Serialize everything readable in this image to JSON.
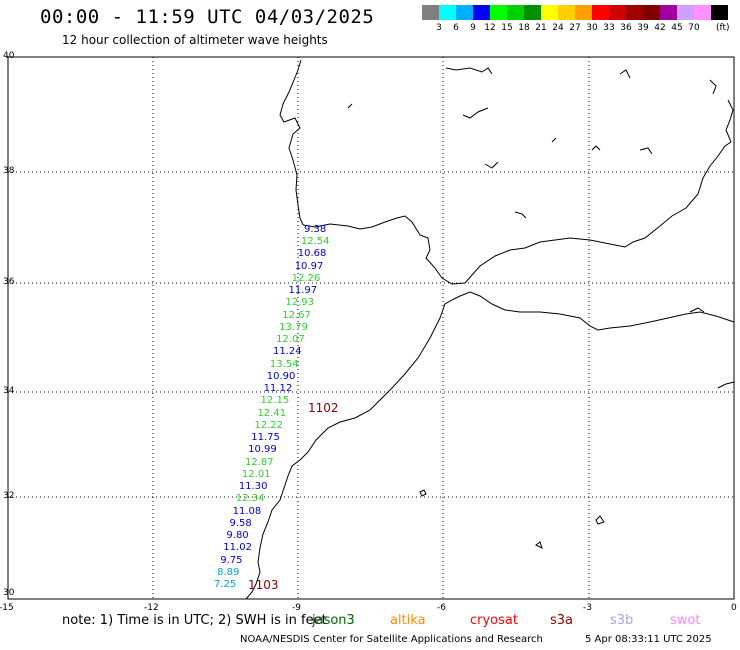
{
  "header": {
    "title": "00:00 - 11:59 UTC 04/03/2025",
    "subtitle": "12 hour collection of altimeter wave heights"
  },
  "scale": {
    "colors": [
      "#808080",
      "#00ffff",
      "#00b0ff",
      "#0000ff",
      "#00ff00",
      "#00d000",
      "#009000",
      "#ffff00",
      "#ffd000",
      "#ffa000",
      "#ff0000",
      "#d00000",
      "#a00000",
      "#800000",
      "#a000a0",
      "#d0a0ff",
      "#ff90ff",
      "#000000"
    ],
    "labels": [
      "3",
      "6",
      "9",
      "12",
      "15",
      "18",
      "21",
      "24",
      "27",
      "30",
      "33",
      "36",
      "39",
      "42",
      "45",
      "70"
    ],
    "unit": "(ft)"
  },
  "axes": {
    "lat_labels": [
      "40",
      "38",
      "36",
      "34",
      "32",
      "30"
    ],
    "lon_labels": [
      "-15",
      "-12",
      "-9",
      "-6",
      "-3",
      "0"
    ]
  },
  "observations": [
    {
      "v": "9.38",
      "c": "#0000cd"
    },
    {
      "v": "12.54",
      "c": "#32cd32"
    },
    {
      "v": "10.68",
      "c": "#0000cd"
    },
    {
      "v": "10.97",
      "c": "#0000cd"
    },
    {
      "v": "12.26",
      "c": "#32cd32"
    },
    {
      "v": "11.97",
      "c": "#0000cd"
    },
    {
      "v": "12.93",
      "c": "#32cd32"
    },
    {
      "v": "12.67",
      "c": "#32cd32"
    },
    {
      "v": "13.79",
      "c": "#32cd32"
    },
    {
      "v": "12.07",
      "c": "#32cd32"
    },
    {
      "v": "11.24",
      "c": "#0000cd"
    },
    {
      "v": "13.54",
      "c": "#32cd32"
    },
    {
      "v": "10.90",
      "c": "#0000cd"
    },
    {
      "v": "11.12",
      "c": "#0000cd"
    },
    {
      "v": "12.15",
      "c": "#32cd32"
    },
    {
      "v": "12.41",
      "c": "#32cd32"
    },
    {
      "v": "12.22",
      "c": "#32cd32"
    },
    {
      "v": "11.75",
      "c": "#0000cd"
    },
    {
      "v": "10.99",
      "c": "#0000cd"
    },
    {
      "v": "12.87",
      "c": "#32cd32"
    },
    {
      "v": "12.01",
      "c": "#32cd32"
    },
    {
      "v": "11.30",
      "c": "#0000cd"
    },
    {
      "v": "12.34",
      "c": "#32cd32"
    },
    {
      "v": "11.08",
      "c": "#0000cd"
    },
    {
      "v": "9.58",
      "c": "#0000cd"
    },
    {
      "v": "9.80",
      "c": "#0000cd"
    },
    {
      "v": "11.02",
      "c": "#0000cd"
    },
    {
      "v": "9.75",
      "c": "#0000cd"
    },
    {
      "v": "8.89",
      "c": "#00a0d0"
    },
    {
      "v": "7.25",
      "c": "#00a0d0"
    }
  ],
  "tracks": [
    "1102",
    "1103"
  ],
  "note": {
    "text": "note: 1) Time is in UTC; 2) SWH is in feet",
    "satellites": [
      {
        "name": "jason3",
        "color": "#006400"
      },
      {
        "name": "altika",
        "color": "#ff8c00"
      },
      {
        "name": "cryosat",
        "color": "#ff0000"
      },
      {
        "name": "s3a",
        "color": "#8b0000"
      },
      {
        "name": "s3b",
        "color": "#b0a0e0"
      },
      {
        "name": "swot",
        "color": "#ff80ff"
      }
    ]
  },
  "footer": {
    "credit": "NOAA/NESDIS Center for Satellite Applications and Research",
    "timestamp": "5 Apr 08:33:11 UTC 2025"
  }
}
